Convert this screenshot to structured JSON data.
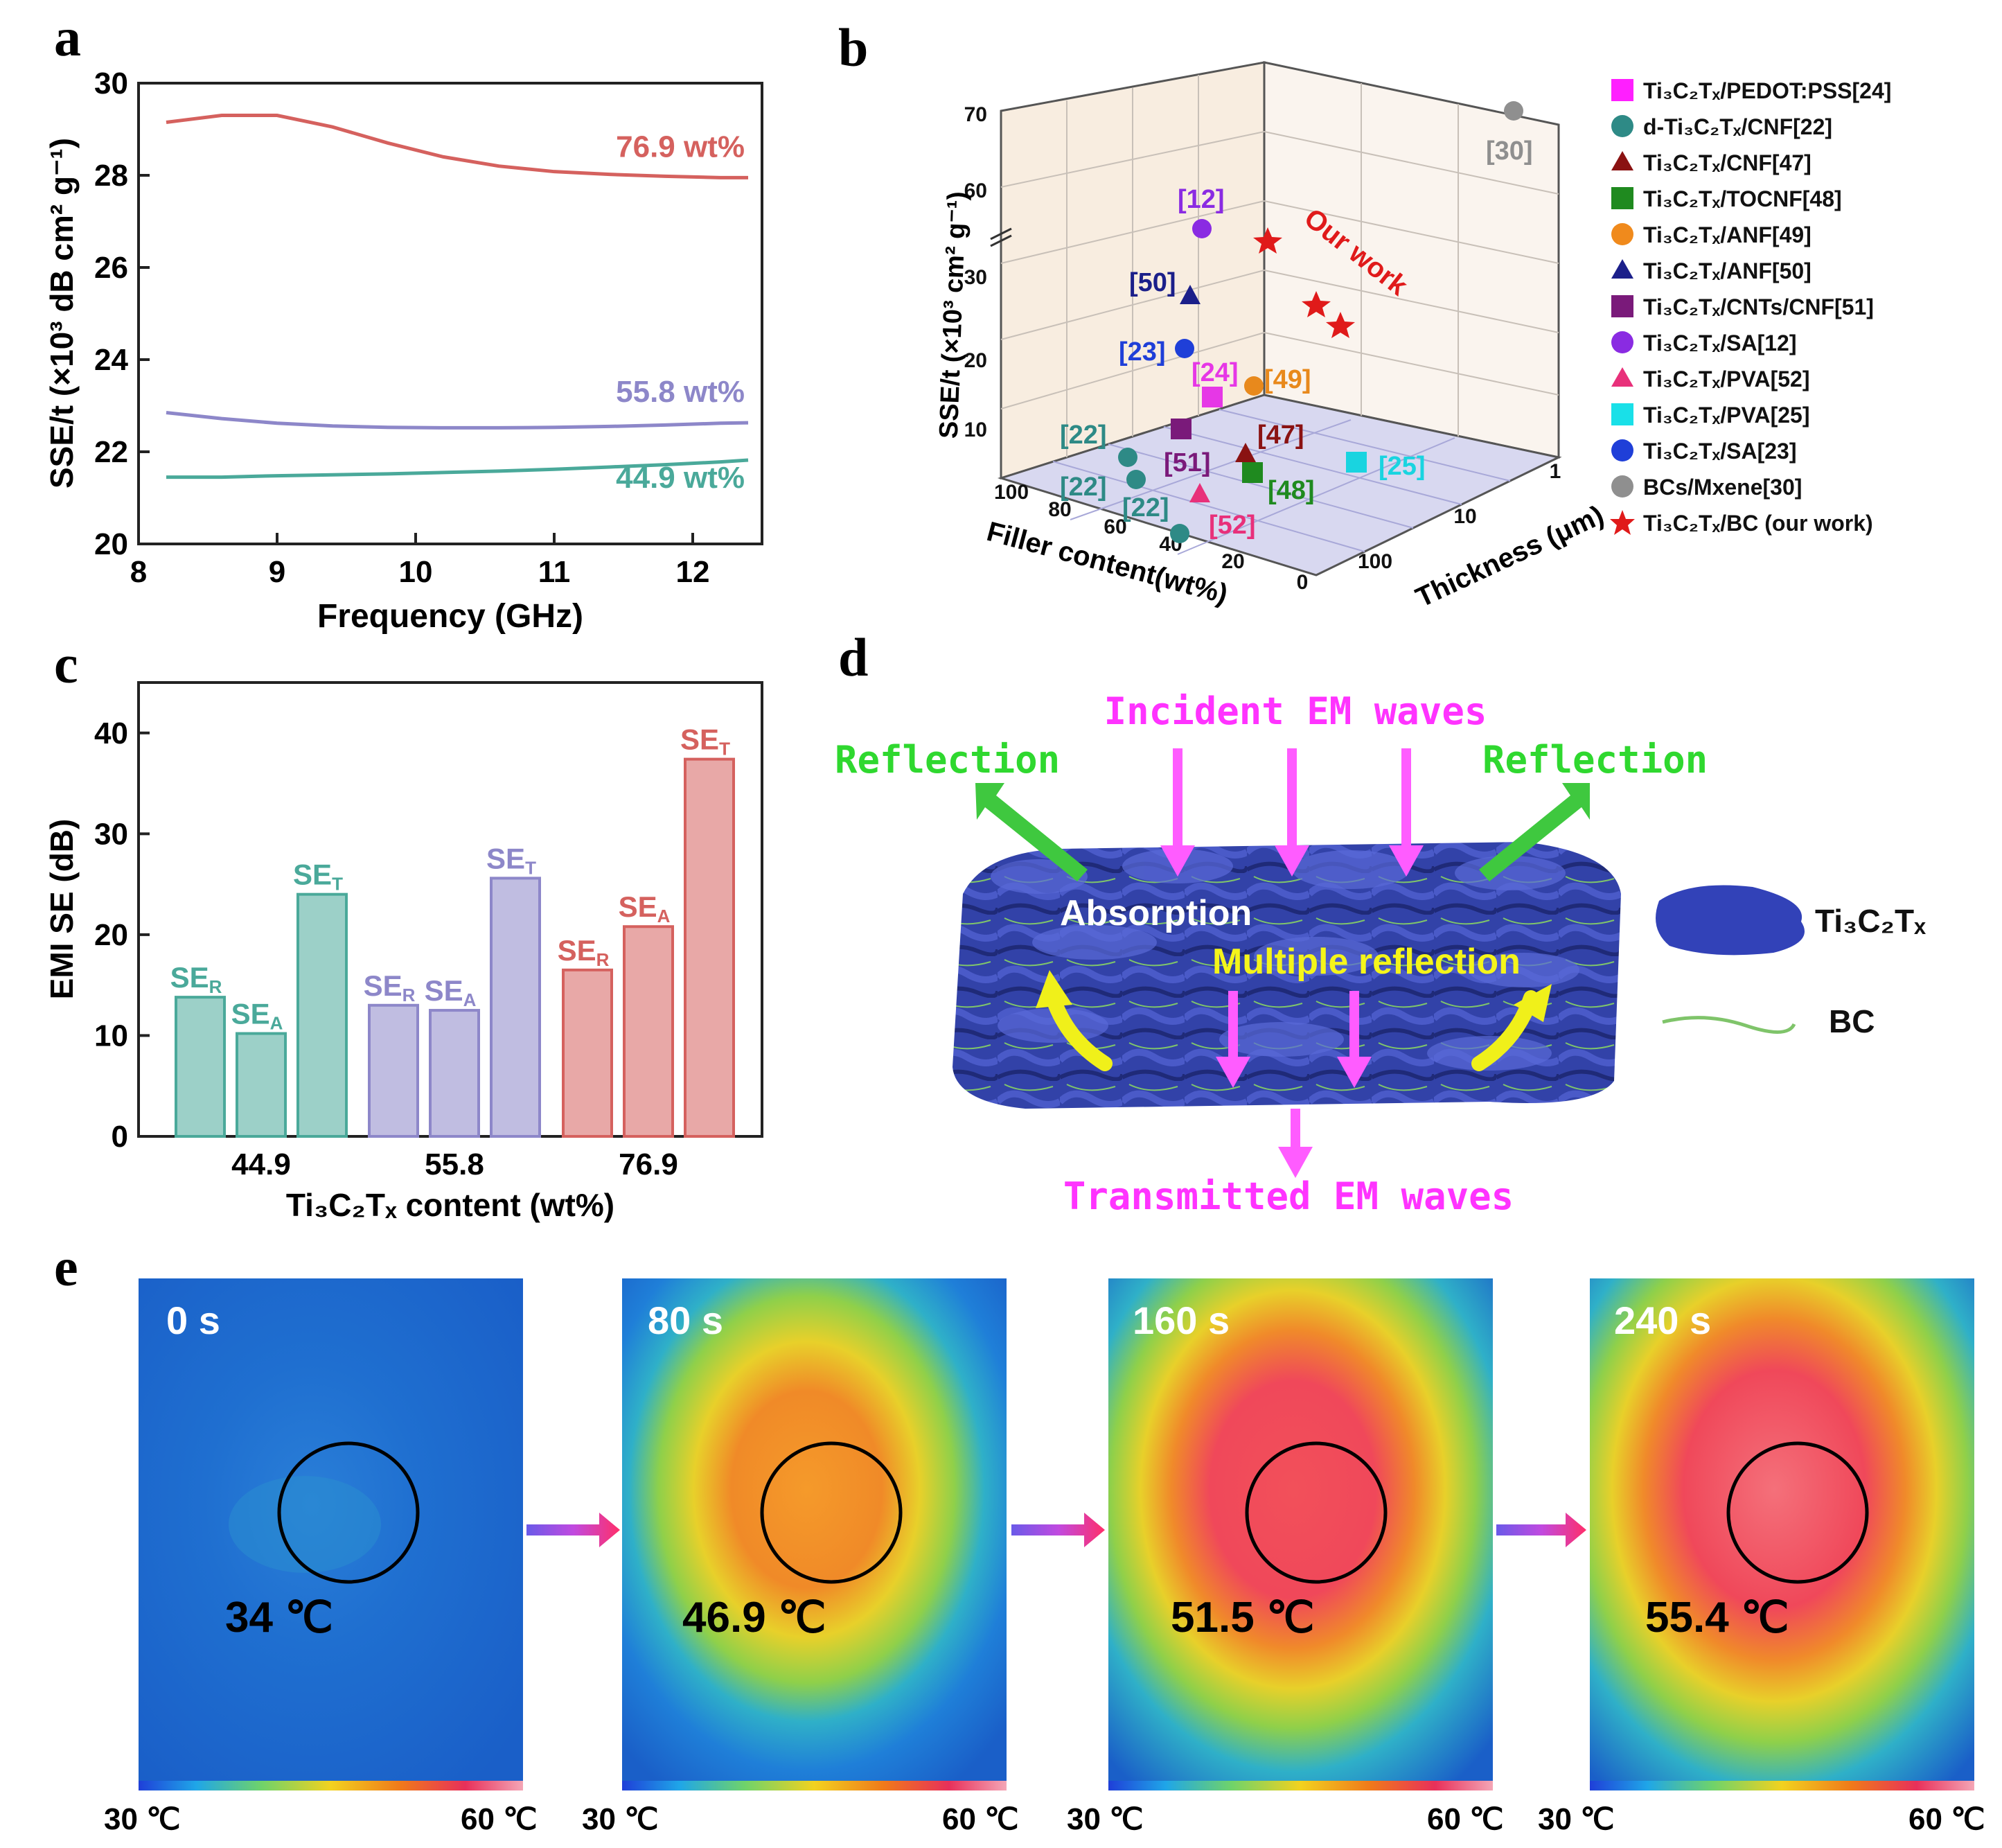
{
  "panel_labels": {
    "a": "a",
    "b": "b",
    "c": "c",
    "d": "d",
    "e": "e"
  },
  "chart_data": [
    {
      "panel": "a",
      "type": "line",
      "xlabel": "Frequency (GHz)",
      "ylabel": "SSE/t (×10³ dB cm² g⁻¹)",
      "xlim": [
        8,
        12.5
      ],
      "ylim": [
        20,
        30
      ],
      "xticks": [
        "8",
        "9",
        "10",
        "11",
        "12"
      ],
      "yticks": [
        "20",
        "22",
        "24",
        "26",
        "28",
        "30"
      ],
      "x": [
        8.2,
        8.6,
        9.0,
        9.4,
        9.8,
        10.2,
        10.6,
        11.0,
        11.4,
        11.8,
        12.2,
        12.4
      ],
      "series": [
        {
          "name": "76.9 wt%",
          "color": "#d5615e",
          "values": [
            29.15,
            29.3,
            29.3,
            29.05,
            28.7,
            28.4,
            28.2,
            28.08,
            28.02,
            27.98,
            27.95,
            27.95
          ]
        },
        {
          "name": "55.8 wt%",
          "color": "#8d87c9",
          "values": [
            22.85,
            22.72,
            22.62,
            22.56,
            22.53,
            22.52,
            22.52,
            22.53,
            22.55,
            22.58,
            22.62,
            22.63
          ]
        },
        {
          "name": "44.9 wt%",
          "color": "#4aa99a",
          "values": [
            21.45,
            21.45,
            21.48,
            21.5,
            21.52,
            21.55,
            21.58,
            21.62,
            21.67,
            21.72,
            21.78,
            21.82
          ]
        }
      ]
    },
    {
      "panel": "b",
      "type": "scatter",
      "xlabel": "Filler content(wt%)",
      "ylabel": "SSE/t (×10³ cm² g⁻¹)",
      "zlabel": "Thickness (μm)",
      "yticks": [
        "10",
        "20",
        "30",
        "60",
        "70"
      ],
      "filler_ticks": [
        "100",
        "80",
        "60",
        "40",
        "20",
        "0"
      ],
      "thickness_ticks": [
        "1",
        "10",
        "100"
      ],
      "annotation": "Our work",
      "points": [
        {
          "ref": "[12]",
          "color": "#8a2be2"
        },
        {
          "ref": "[50]",
          "color": "#1b1f8a"
        },
        {
          "ref": "[23]",
          "color": "#1f3fd8"
        },
        {
          "ref": "[24]",
          "color": "#e637e6"
        },
        {
          "ref": "[49]",
          "color": "#e8891c"
        },
        {
          "ref": "[22]",
          "color": "#2e8a86"
        },
        {
          "ref": "[22]",
          "color": "#2e8a86"
        },
        {
          "ref": "[22]",
          "color": "#2e8a86"
        },
        {
          "ref": "[51]",
          "color": "#7a1a7a"
        },
        {
          "ref": "[47]",
          "color": "#8a1212"
        },
        {
          "ref": "[48]",
          "color": "#1f8a1f"
        },
        {
          "ref": "[52]",
          "color": "#e8307a"
        },
        {
          "ref": "[25]",
          "color": "#19d4e0"
        },
        {
          "ref": "[30]",
          "color": "#8f8f8f"
        }
      ],
      "legend": [
        {
          "label": "Ti₃C₂Tₓ/PEDOT:PSS[24]",
          "marker": "square",
          "color": "#ff1fff"
        },
        {
          "label": "d-Ti₃C₂Tₓ/CNF[22]",
          "marker": "sphere",
          "color": "#2e8a86"
        },
        {
          "label": "Ti₃C₂Tₓ/CNF[47]",
          "marker": "triangle",
          "color": "#8a1212"
        },
        {
          "label": "Ti₃C₂Tₓ/TOCNF[48]",
          "marker": "square",
          "color": "#1f8a1f"
        },
        {
          "label": "Ti₃C₂Tₓ/ANF[49]",
          "marker": "sphere",
          "color": "#f08a1c"
        },
        {
          "label": "Ti₃C₂Tₓ/ANF[50]",
          "marker": "triangle",
          "color": "#1b1f8a"
        },
        {
          "label": "Ti₃C₂Tₓ/CNTs/CNF[51]",
          "marker": "square",
          "color": "#7a1a7a"
        },
        {
          "label": "Ti₃C₂Tₓ/SA[12]",
          "marker": "sphere",
          "color": "#8a2be2"
        },
        {
          "label": "Ti₃C₂Tₓ/PVA[52]",
          "marker": "triangle",
          "color": "#e8307a"
        },
        {
          "label": "Ti₃C₂Tₓ/PVA[25]",
          "marker": "square",
          "color": "#19e0e8"
        },
        {
          "label": "Ti₃C₂Tₓ/SA[23]",
          "marker": "sphere",
          "color": "#1f3fd8"
        },
        {
          "label": "BCs/Mxene[30]",
          "marker": "circle",
          "color": "#8f8f8f"
        },
        {
          "label": "Ti₃C₂Tₓ/BC (our work)",
          "marker": "star",
          "color": "#e01a1a"
        }
      ]
    },
    {
      "panel": "c",
      "type": "bar",
      "xlabel": "Ti₃C₂Tₓ content (wt%)",
      "ylabel": "EMI SE (dB)",
      "ylim": [
        0,
        45
      ],
      "yticks": [
        "0",
        "10",
        "20",
        "30",
        "40"
      ],
      "categories": [
        "44.9",
        "55.8",
        "76.9"
      ],
      "colors": [
        "#4aa99a",
        "#8d87c9",
        "#d5615e"
      ],
      "series": [
        {
          "name": "SE",
          "sub": "R",
          "values": [
            13.8,
            13.0,
            16.5
          ]
        },
        {
          "name": "SE",
          "sub": "A",
          "values": [
            10.2,
            12.5,
            20.8
          ]
        },
        {
          "name": "SE",
          "sub": "T",
          "values": [
            24.0,
            25.6,
            37.4
          ]
        }
      ]
    }
  ],
  "diagram_d": {
    "incident": "Incident EM waves",
    "reflection_left": "Reflection",
    "reflection_right": "Reflection",
    "absorption": "Absorption",
    "multiple": "Multiple reflection",
    "transmitted": "Transmitted EM waves",
    "legend_mxene": "Ti₃C₂Tₓ",
    "legend_bc": "BC"
  },
  "thermal_e": [
    {
      "time": "0 s",
      "temp": "34 ℃"
    },
    {
      "time": "80 s",
      "temp": "46.9 ℃"
    },
    {
      "time": "160 s",
      "temp": "51.5 ℃"
    },
    {
      "time": "240 s",
      "temp": "55.4 ℃"
    }
  ],
  "scale_min": "30 ℃",
  "scale_max": "60 ℃"
}
